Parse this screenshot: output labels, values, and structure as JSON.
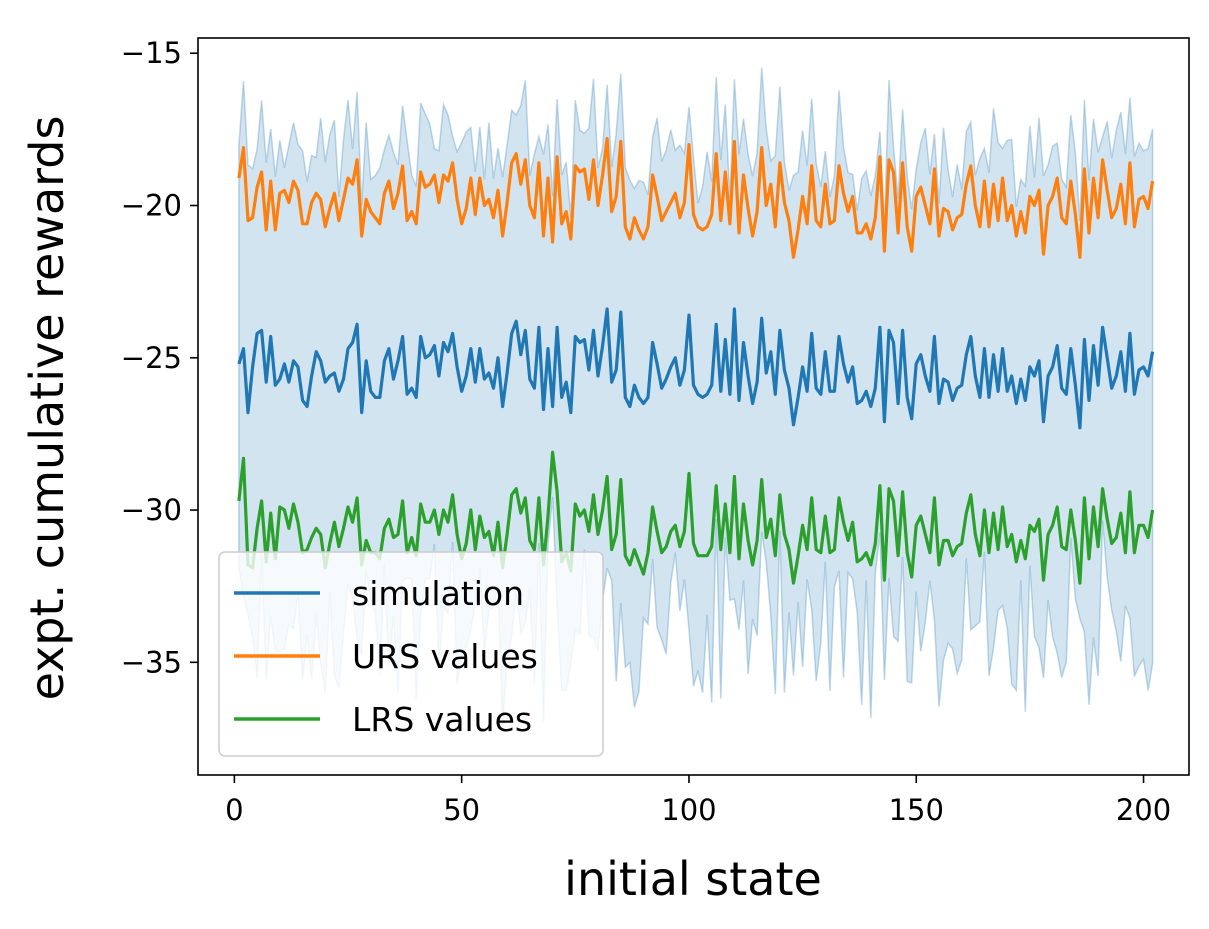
{
  "chart_data": {
    "type": "line",
    "title": "",
    "xlabel": "initial state",
    "ylabel": "expt. cumulative rewards",
    "xlim": [
      -8,
      210
    ],
    "ylim": [
      -38.7,
      -14.5
    ],
    "xticks": [
      0,
      50,
      100,
      150,
      200
    ],
    "xtick_labels": [
      "0",
      "50",
      "100",
      "150",
      "200"
    ],
    "yticks": [
      -15,
      -20,
      -25,
      -30,
      -35
    ],
    "ytick_labels": [
      "−15",
      "−20",
      "−25",
      "−30",
      "−35"
    ],
    "legend_position": "lower-left",
    "x_start": 1,
    "x_end": 200,
    "band": {
      "name": "simulation range",
      "color": "#1f77b4",
      "opacity": 0.2,
      "edge_opacity": 0.28
    },
    "series": [
      {
        "name": "simulation",
        "color": "#1f77b4",
        "values": [
          -25.2,
          -24.7,
          -26.8,
          -25.3,
          -24.2,
          -24.1,
          -25.8,
          -24.3,
          -25.9,
          -25.7,
          -25.2,
          -25.8,
          -25.1,
          -25.3,
          -26.4,
          -26.6,
          -25.6,
          -24.8,
          -25.1,
          -25.8,
          -25.6,
          -25.5,
          -26.1,
          -25.7,
          -24.7,
          -24.5,
          -23.9,
          -26.8,
          -25.1,
          -26.1,
          -26.3,
          -26.3,
          -25.1,
          -24.7,
          -25.7,
          -25.1,
          -24.3,
          -26.2,
          -26.0,
          -26.3,
          -24.3,
          -25.0,
          -24.9,
          -24.6,
          -25.6,
          -24.5,
          -24.8,
          -24.2,
          -25.3,
          -26.1,
          -25.6,
          -24.7,
          -25.8,
          -24.7,
          -25.7,
          -25.5,
          -26.0,
          -25.0,
          -26.6,
          -25.5,
          -24.2,
          -23.8,
          -24.9,
          -24.1,
          -25.7,
          -26.0,
          -24.0,
          -26.7,
          -24.7,
          -26.6,
          -24.0,
          -26.3,
          -25.8,
          -26.8,
          -24.3,
          -24.5,
          -24.4,
          -25.4,
          -24.1,
          -25.6,
          -24.6,
          -23.4,
          -25.8,
          -25.4,
          -23.5,
          -26.3,
          -26.6,
          -25.9,
          -26.3,
          -26.5,
          -26.3,
          -24.5,
          -25.2,
          -26.0,
          -25.7,
          -25.3,
          -25.0,
          -25.9,
          -25.4,
          -23.6,
          -25.9,
          -26.2,
          -26.3,
          -26.2,
          -25.9,
          -23.9,
          -26.1,
          -24.4,
          -26.2,
          -23.4,
          -26.4,
          -24.5,
          -25.6,
          -26.5,
          -25.8,
          -23.7,
          -25.5,
          -24.8,
          -26.2,
          -24.1,
          -25.4,
          -26.0,
          -27.2,
          -26.3,
          -25.3,
          -26.1,
          -24.2,
          -26.0,
          -26.2,
          -24.8,
          -26.1,
          -26.1,
          -24.3,
          -25.2,
          -25.8,
          -25.3,
          -26.5,
          -26.4,
          -26.1,
          -26.6,
          -26.0,
          -24.0,
          -27.1,
          -24.1,
          -24.5,
          -26.5,
          -24.1,
          -26.3,
          -27.0,
          -25.2,
          -24.9,
          -25.6,
          -26.1,
          -24.3,
          -26.5,
          -25.7,
          -25.8,
          -26.4,
          -26.0,
          -25.9,
          -24.9,
          -24.3,
          -25.6,
          -26.3,
          -24.7,
          -26.3,
          -24.9,
          -26.1,
          -24.7,
          -26.1,
          -25.6,
          -26.5,
          -25.7,
          -26.4,
          -25.3,
          -25.6,
          -25.1,
          -27.1,
          -25.6,
          -25.3,
          -24.6,
          -26.0,
          -26.2,
          -24.7,
          -25.9,
          -27.3,
          -24.4,
          -26.4,
          -24.6,
          -25.9,
          -24.0,
          -25.0,
          -26.0,
          -25.6,
          -24.8,
          -26.1,
          -24.2,
          -26.2,
          -25.4,
          -25.3,
          -25.6,
          -24.8
        ]
      },
      {
        "name": "URS values",
        "color": "#ff7f0e",
        "values": [
          -19.1,
          -18.1,
          -20.5,
          -20.4,
          -19.4,
          -18.9,
          -20.8,
          -19.2,
          -20.8,
          -19.6,
          -19.5,
          -19.9,
          -19.2,
          -19.5,
          -20.6,
          -20.6,
          -19.9,
          -19.6,
          -19.8,
          -20.7,
          -20.1,
          -19.6,
          -20.5,
          -19.8,
          -19.1,
          -19.3,
          -18.5,
          -21.0,
          -19.8,
          -20.2,
          -20.4,
          -20.6,
          -19.6,
          -19.2,
          -20.1,
          -19.6,
          -18.7,
          -20.5,
          -20.2,
          -20.6,
          -18.9,
          -19.4,
          -19.3,
          -19.0,
          -19.9,
          -19.0,
          -19.2,
          -18.6,
          -19.8,
          -20.6,
          -20.1,
          -19.1,
          -20.3,
          -19.1,
          -20.0,
          -19.8,
          -20.4,
          -19.5,
          -21.0,
          -19.9,
          -18.6,
          -18.3,
          -19.3,
          -18.5,
          -20.0,
          -20.4,
          -18.6,
          -21.0,
          -19.1,
          -21.2,
          -18.4,
          -20.6,
          -20.2,
          -21.1,
          -18.7,
          -18.9,
          -18.8,
          -19.8,
          -18.5,
          -20.0,
          -19.0,
          -17.8,
          -20.2,
          -19.7,
          -17.9,
          -20.7,
          -21.1,
          -20.4,
          -20.8,
          -21.1,
          -20.7,
          -19.0,
          -19.7,
          -20.5,
          -20.2,
          -19.9,
          -19.6,
          -20.4,
          -19.9,
          -18.0,
          -20.3,
          -20.7,
          -20.8,
          -20.7,
          -20.3,
          -18.3,
          -20.5,
          -18.9,
          -20.6,
          -17.9,
          -20.9,
          -19.0,
          -20.1,
          -21.0,
          -20.2,
          -18.1,
          -20.0,
          -19.3,
          -20.7,
          -18.6,
          -19.9,
          -20.5,
          -21.7,
          -20.8,
          -19.7,
          -20.6,
          -18.7,
          -20.5,
          -20.7,
          -19.3,
          -20.6,
          -20.5,
          -18.7,
          -19.6,
          -20.2,
          -19.7,
          -20.9,
          -20.9,
          -20.6,
          -21.1,
          -20.4,
          -18.4,
          -21.5,
          -18.5,
          -18.9,
          -20.9,
          -18.6,
          -20.7,
          -21.5,
          -19.7,
          -19.4,
          -20.0,
          -20.6,
          -18.8,
          -21.0,
          -20.1,
          -20.2,
          -20.8,
          -20.4,
          -20.3,
          -19.3,
          -18.7,
          -20.0,
          -20.7,
          -19.2,
          -20.7,
          -19.3,
          -20.5,
          -19.1,
          -20.5,
          -20.0,
          -21.0,
          -20.2,
          -20.9,
          -19.7,
          -20.0,
          -19.5,
          -21.6,
          -20.0,
          -19.7,
          -19.1,
          -20.4,
          -20.6,
          -19.2,
          -20.3,
          -21.7,
          -18.8,
          -20.9,
          -19.1,
          -20.4,
          -18.5,
          -19.5,
          -20.4,
          -20.1,
          -19.3,
          -20.6,
          -18.6,
          -20.7,
          -19.8,
          -19.7,
          -20.1,
          -19.2
        ]
      },
      {
        "name": "LRS values",
        "color": "#2ca02c",
        "values": [
          -29.7,
          -28.3,
          -31.8,
          -31.9,
          -30.6,
          -29.7,
          -31.7,
          -30.1,
          -31.6,
          -29.9,
          -30.0,
          -30.6,
          -29.8,
          -30.4,
          -31.4,
          -31.3,
          -30.9,
          -30.6,
          -30.8,
          -31.9,
          -31.1,
          -30.4,
          -31.2,
          -30.6,
          -29.9,
          -30.4,
          -29.6,
          -31.8,
          -31.0,
          -31.4,
          -31.4,
          -31.6,
          -30.6,
          -30.3,
          -30.9,
          -30.8,
          -29.7,
          -31.4,
          -30.9,
          -31.5,
          -29.8,
          -30.4,
          -30.4,
          -30.0,
          -30.8,
          -30.0,
          -30.4,
          -29.5,
          -30.8,
          -31.6,
          -31.1,
          -30.0,
          -31.3,
          -30.2,
          -30.9,
          -30.7,
          -31.5,
          -30.4,
          -31.9,
          -30.8,
          -29.5,
          -29.3,
          -30.1,
          -29.6,
          -31.0,
          -31.3,
          -29.6,
          -31.8,
          -30.2,
          -28.1,
          -29.4,
          -31.7,
          -31.4,
          -32.0,
          -29.8,
          -30.2,
          -30.0,
          -30.7,
          -29.5,
          -30.8,
          -30.0,
          -28.9,
          -31.3,
          -30.8,
          -29.0,
          -31.5,
          -31.8,
          -31.3,
          -31.7,
          -32.1,
          -31.4,
          -29.9,
          -30.7,
          -31.4,
          -31.2,
          -30.7,
          -30.5,
          -31.2,
          -30.7,
          -28.8,
          -31.1,
          -31.5,
          -31.5,
          -31.5,
          -31.2,
          -29.2,
          -31.3,
          -29.8,
          -31.4,
          -28.9,
          -31.6,
          -29.8,
          -31.0,
          -31.8,
          -31.0,
          -29.0,
          -30.9,
          -30.3,
          -31.5,
          -29.5,
          -30.8,
          -31.3,
          -32.4,
          -31.5,
          -30.5,
          -31.3,
          -29.6,
          -31.3,
          -31.4,
          -30.2,
          -31.4,
          -31.3,
          -29.6,
          -30.4,
          -31.0,
          -30.4,
          -31.7,
          -31.6,
          -31.4,
          -31.8,
          -31.1,
          -29.2,
          -32.3,
          -29.3,
          -29.7,
          -31.5,
          -29.4,
          -31.4,
          -32.2,
          -30.5,
          -30.2,
          -30.8,
          -31.4,
          -29.6,
          -31.8,
          -31.0,
          -31.0,
          -31.5,
          -31.2,
          -31.1,
          -30.1,
          -29.5,
          -30.8,
          -31.5,
          -30.0,
          -31.4,
          -30.1,
          -31.3,
          -29.9,
          -31.2,
          -30.8,
          -31.7,
          -31.0,
          -31.6,
          -30.5,
          -30.7,
          -30.3,
          -32.3,
          -30.8,
          -30.5,
          -29.9,
          -31.2,
          -31.3,
          -30.0,
          -31.0,
          -32.4,
          -29.6,
          -31.6,
          -29.9,
          -31.2,
          -29.3,
          -30.3,
          -31.1,
          -30.9,
          -30.1,
          -31.4,
          -29.4,
          -31.4,
          -30.5,
          -30.5,
          -30.9,
          -30.0
        ]
      }
    ]
  }
}
